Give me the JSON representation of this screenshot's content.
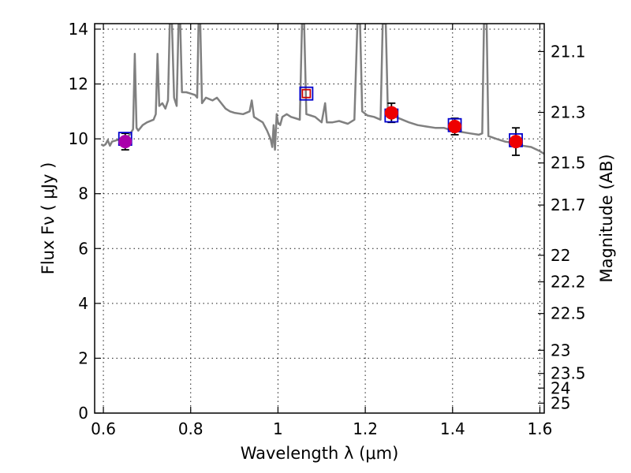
{
  "chart_data": {
    "type": "scatter",
    "title": "",
    "xlabel": "Wavelength  λ (μm)",
    "ylabel": "Flux  Fν  ( μJy )",
    "y2label": "Magnitude (AB)",
    "xlim": [
      0.58,
      1.61
    ],
    "ylim": [
      0,
      14.2
    ],
    "grid": true,
    "x_ticks": [
      0.6,
      0.8,
      1.0,
      1.2,
      1.4,
      1.6
    ],
    "x_tick_labels": [
      "0.6",
      "0.8",
      "1",
      "1.2",
      "1.4",
      "1.6"
    ],
    "y_ticks": [
      0,
      2,
      4,
      6,
      8,
      10,
      12,
      14
    ],
    "y_tick_labels": [
      "0",
      "2",
      "4",
      "6",
      "8",
      "10",
      "12",
      "14"
    ],
    "y2_ticks": [
      21.1,
      21.3,
      21.5,
      21.7,
      22,
      22.2,
      22.5,
      23,
      23.5,
      24,
      25
    ],
    "y2_tick_labels": [
      "21.1",
      "21.3",
      "21.5",
      "21.7",
      "22",
      "22.2",
      "22.5",
      "23",
      "23.5",
      "24",
      "25"
    ],
    "series": [
      {
        "kind": "spectrum",
        "color": "#808080",
        "points": [
          [
            0.595,
            9.8
          ],
          [
            0.6,
            9.75
          ],
          [
            0.605,
            9.8
          ],
          [
            0.61,
            9.95
          ],
          [
            0.615,
            9.75
          ],
          [
            0.62,
            9.9
          ],
          [
            0.63,
            9.95
          ],
          [
            0.64,
            10.0
          ],
          [
            0.65,
            10.0
          ],
          [
            0.66,
            10.15
          ],
          [
            0.668,
            10.35
          ],
          [
            0.672,
            13.1
          ],
          [
            0.676,
            10.4
          ],
          [
            0.68,
            10.3
          ],
          [
            0.69,
            10.5
          ],
          [
            0.7,
            10.6
          ],
          [
            0.715,
            10.7
          ],
          [
            0.72,
            10.9
          ],
          [
            0.724,
            13.1
          ],
          [
            0.728,
            11.2
          ],
          [
            0.735,
            11.3
          ],
          [
            0.742,
            11.1
          ],
          [
            0.748,
            11.4
          ],
          [
            0.752,
            14.2
          ],
          [
            0.757,
            14.2
          ],
          [
            0.762,
            11.5
          ],
          [
            0.768,
            11.2
          ],
          [
            0.772,
            14.2
          ],
          [
            0.776,
            14.2
          ],
          [
            0.78,
            11.7
          ],
          [
            0.79,
            11.7
          ],
          [
            0.8,
            11.65
          ],
          [
            0.81,
            11.6
          ],
          [
            0.815,
            11.5
          ],
          [
            0.818,
            14.2
          ],
          [
            0.822,
            14.2
          ],
          [
            0.826,
            11.3
          ],
          [
            0.835,
            11.5
          ],
          [
            0.85,
            11.4
          ],
          [
            0.86,
            11.5
          ],
          [
            0.87,
            11.3
          ],
          [
            0.88,
            11.1
          ],
          [
            0.89,
            11.0
          ],
          [
            0.9,
            10.95
          ],
          [
            0.92,
            10.9
          ],
          [
            0.935,
            11.0
          ],
          [
            0.94,
            11.4
          ],
          [
            0.945,
            10.8
          ],
          [
            0.955,
            10.7
          ],
          [
            0.965,
            10.6
          ],
          [
            0.975,
            10.3
          ],
          [
            0.983,
            10.0
          ],
          [
            0.987,
            9.7
          ],
          [
            0.99,
            10.5
          ],
          [
            0.993,
            9.6
          ],
          [
            0.997,
            10.9
          ],
          [
            1.0,
            10.6
          ],
          [
            1.005,
            10.5
          ],
          [
            1.01,
            10.8
          ],
          [
            1.02,
            10.9
          ],
          [
            1.03,
            10.8
          ],
          [
            1.04,
            10.75
          ],
          [
            1.05,
            10.7
          ],
          [
            1.055,
            14.2
          ],
          [
            1.06,
            14.2
          ],
          [
            1.065,
            10.9
          ],
          [
            1.075,
            10.85
          ],
          [
            1.085,
            10.8
          ],
          [
            1.1,
            10.6
          ],
          [
            1.108,
            11.3
          ],
          [
            1.112,
            10.6
          ],
          [
            1.125,
            10.6
          ],
          [
            1.14,
            10.65
          ],
          [
            1.16,
            10.55
          ],
          [
            1.175,
            10.7
          ],
          [
            1.182,
            14.2
          ],
          [
            1.188,
            14.2
          ],
          [
            1.193,
            11.0
          ],
          [
            1.205,
            10.85
          ],
          [
            1.22,
            10.8
          ],
          [
            1.235,
            10.7
          ],
          [
            1.24,
            14.2
          ],
          [
            1.247,
            14.2
          ],
          [
            1.252,
            10.8
          ],
          [
            1.26,
            10.85
          ],
          [
            1.27,
            10.8
          ],
          [
            1.285,
            10.7
          ],
          [
            1.3,
            10.6
          ],
          [
            1.32,
            10.5
          ],
          [
            1.34,
            10.45
          ],
          [
            1.36,
            10.4
          ],
          [
            1.38,
            10.4
          ],
          [
            1.4,
            10.3
          ],
          [
            1.42,
            10.25
          ],
          [
            1.44,
            10.2
          ],
          [
            1.46,
            10.15
          ],
          [
            1.468,
            10.2
          ],
          [
            1.472,
            14.2
          ],
          [
            1.478,
            14.2
          ],
          [
            1.482,
            10.1
          ],
          [
            1.5,
            10.0
          ],
          [
            1.52,
            9.9
          ],
          [
            1.54,
            9.85
          ],
          [
            1.56,
            9.75
          ],
          [
            1.58,
            9.7
          ],
          [
            1.6,
            9.55
          ],
          [
            1.61,
            9.45
          ]
        ]
      },
      {
        "kind": "model-box",
        "marker": "open-square",
        "color": "#0000cc",
        "points": [
          [
            0.65,
            10.0
          ],
          [
            1.065,
            11.65
          ],
          [
            1.26,
            10.85
          ],
          [
            1.405,
            10.5
          ],
          [
            1.545,
            9.95
          ]
        ]
      },
      {
        "kind": "model-box-inner",
        "marker": "open-square",
        "color": "#cc0000",
        "points": [
          [
            1.065,
            11.65
          ]
        ]
      },
      {
        "kind": "observed",
        "marker": "filled-circle",
        "points": [
          {
            "x": 0.65,
            "y": 9.9,
            "err": 0.3,
            "color": "#aa00aa"
          },
          {
            "x": 1.26,
            "y": 10.95,
            "err": 0.35,
            "color": "#ee0000"
          },
          {
            "x": 1.405,
            "y": 10.45,
            "err": 0.3,
            "color": "#ee0000"
          },
          {
            "x": 1.545,
            "y": 9.9,
            "err": 0.5,
            "color": "#ee0000"
          }
        ]
      }
    ]
  }
}
